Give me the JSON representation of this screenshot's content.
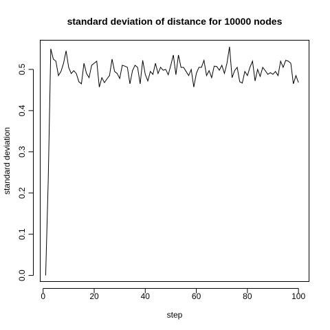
{
  "chart_data": {
    "type": "line",
    "title": "standard deviation of distance for 10000 nodes",
    "xlabel": "step",
    "ylabel": "standard deviation",
    "xlim": [
      -1,
      104
    ],
    "ylim": [
      -0.014,
      0.57
    ],
    "xticks": [
      0,
      20,
      40,
      60,
      80,
      100
    ],
    "yticks": [
      0.0,
      0.1,
      0.2,
      0.3,
      0.4,
      0.5
    ],
    "ytick_labels": [
      "0.0",
      "0.1",
      "0.2",
      "0.3",
      "0.4",
      "0.5"
    ],
    "grid": false,
    "series": [
      {
        "color": "#000000",
        "x": [
          1,
          2,
          3,
          4,
          5,
          6,
          7,
          8,
          9,
          10,
          11,
          12,
          13,
          14,
          15,
          16,
          17,
          18,
          19,
          20,
          21,
          22,
          23,
          24,
          25,
          26,
          27,
          28,
          29,
          30,
          31,
          32,
          33,
          34,
          35,
          36,
          37,
          38,
          39,
          40,
          41,
          42,
          43,
          44,
          45,
          46,
          47,
          48,
          49,
          50,
          51,
          52,
          53,
          54,
          55,
          56,
          57,
          58,
          59,
          60,
          61,
          62,
          63,
          64,
          65,
          66,
          67,
          68,
          69,
          70,
          71,
          72,
          73,
          74,
          75,
          76,
          77,
          78,
          79,
          80,
          81,
          82,
          83,
          84,
          85,
          86,
          87,
          88,
          89,
          90,
          91,
          92,
          93,
          94,
          95,
          96,
          97,
          98,
          99,
          100
        ],
        "values": [
          0.0,
          0.23,
          0.55,
          0.525,
          0.52,
          0.485,
          0.495,
          0.515,
          0.545,
          0.505,
          0.49,
          0.497,
          0.49,
          0.47,
          0.465,
          0.515,
          0.49,
          0.48,
          0.51,
          0.515,
          0.52,
          0.457,
          0.48,
          0.468,
          0.477,
          0.485,
          0.525,
          0.495,
          0.49,
          0.478,
          0.51,
          0.508,
          0.505,
          0.465,
          0.497,
          0.51,
          0.505,
          0.465,
          0.522,
          0.488,
          0.472,
          0.495,
          0.488,
          0.515,
          0.49,
          0.505,
          0.498,
          0.5,
          0.487,
          0.51,
          0.535,
          0.487,
          0.535,
          0.505,
          0.505,
          0.495,
          0.485,
          0.5,
          0.457,
          0.49,
          0.505,
          0.505,
          0.522,
          0.485,
          0.497,
          0.48,
          0.508,
          0.507,
          0.498,
          0.51,
          0.49,
          0.515,
          0.555,
          0.48,
          0.497,
          0.505,
          0.47,
          0.467,
          0.495,
          0.485,
          0.505,
          0.52,
          0.472,
          0.5,
          0.483,
          0.505,
          0.497,
          0.488,
          0.492,
          0.488,
          0.495,
          0.485,
          0.52,
          0.505,
          0.522,
          0.52,
          0.515,
          0.465,
          0.485,
          0.468
        ]
      }
    ]
  }
}
